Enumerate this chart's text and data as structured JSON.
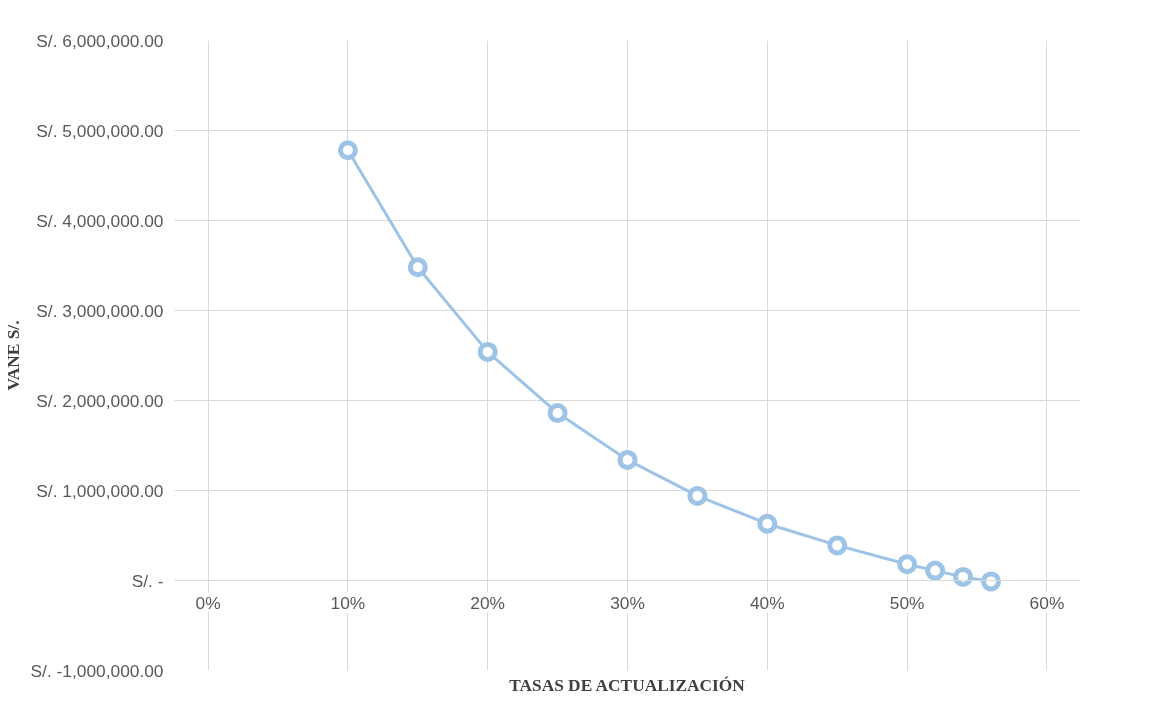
{
  "chart_data": {
    "type": "line",
    "xlabel": "TASAS DE ACTUALIZACIÓN",
    "ylabel": "VANE S/.",
    "x": [
      10,
      15,
      20,
      25,
      30,
      35,
      40,
      45,
      50,
      52,
      54,
      56
    ],
    "series": [
      {
        "color": "#9dc3e6",
        "values": [
          4780000,
          3480000,
          2540000,
          1860000,
          1340000,
          940000,
          630000,
          390000,
          180000,
          110000,
          40000,
          -10000
        ]
      }
    ],
    "xlim": [
      0,
      60
    ],
    "ylim": [
      -1000000,
      6000000
    ],
    "xticks": [
      {
        "value": 0,
        "label": "0%"
      },
      {
        "value": 10,
        "label": "10%"
      },
      {
        "value": 20,
        "label": "20%"
      },
      {
        "value": 30,
        "label": "30%"
      },
      {
        "value": 40,
        "label": "40%"
      },
      {
        "value": 50,
        "label": "50%"
      },
      {
        "value": 60,
        "label": "60%"
      }
    ],
    "yticks": [
      {
        "value": -1000000,
        "label": "S/. -1,000,000.00"
      },
      {
        "value": 0,
        "label": "S/. -"
      },
      {
        "value": 1000000,
        "label": "S/. 1,000,000.00"
      },
      {
        "value": 2000000,
        "label": "S/. 2,000,000.00"
      },
      {
        "value": 3000000,
        "label": "S/. 3,000,000.00"
      },
      {
        "value": 4000000,
        "label": "S/. 4,000,000.00"
      },
      {
        "value": 5000000,
        "label": "S/. 5,000,000.00"
      },
      {
        "value": 6000000,
        "label": "S/. 6,000,000.00"
      }
    ],
    "grid": true,
    "marker": "circle",
    "line_style": "solid"
  }
}
